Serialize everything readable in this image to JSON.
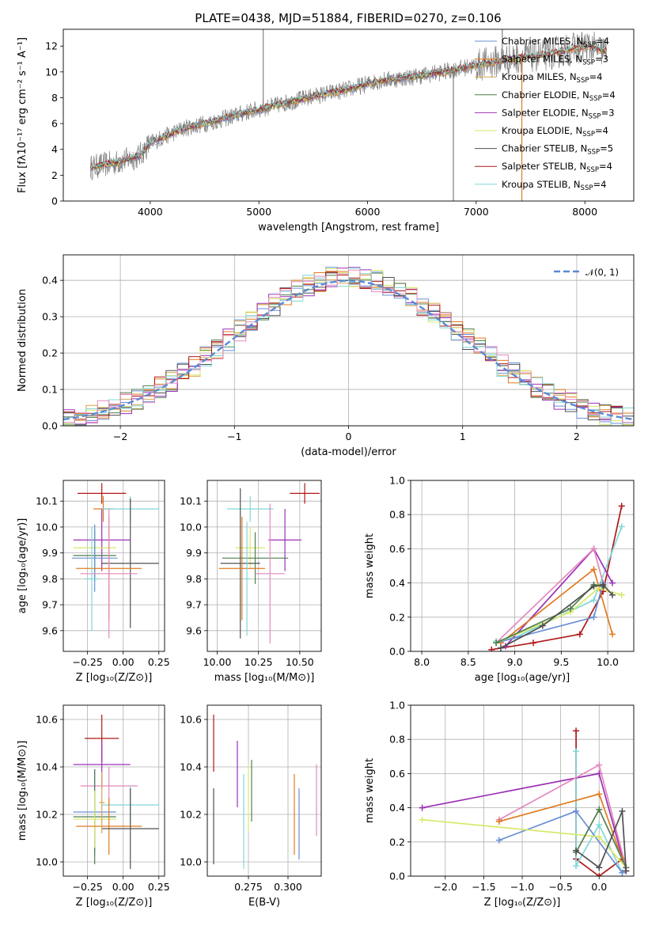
{
  "figure_title": "PLATE=0438, MJD=51884, FIBERID=0270, z=0.106",
  "colors": {
    "chabrier_miles": "#6a8fd6",
    "salpeter_miles": "#e07b1f",
    "kroupa_miles": "#d6a64d",
    "chabrier_elodie": "#4f7f4f",
    "salpeter_elodie": "#9b30b6",
    "kroupa_elodie": "#d8e86a",
    "chabrier_stelib": "#505050",
    "salpeter_stelib": "#b01818",
    "kroupa_stelib": "#80d8d8",
    "pink": "#e389bd",
    "norm_line": "#5b8ad6",
    "data_spectrum": "#808080"
  },
  "chart_data": [
    {
      "id": "spectrum",
      "type": "line",
      "title": "PLATE=0438, MJD=51884, FIBERID=0270, z=0.106",
      "xlabel": "wavelength [Angstrom, rest frame]",
      "ylabel": "Flux [fλ10⁻¹⁷ erg cm⁻² s⁻¹ A⁻¹]",
      "xlim": [
        3200,
        8450
      ],
      "ylim": [
        0,
        13.3
      ],
      "xticks": [
        4000,
        5000,
        6000,
        7000,
        8000
      ],
      "yticks": [
        0,
        2,
        4,
        6,
        8,
        10,
        12
      ],
      "grid": false,
      "legend_position": "top-right",
      "legend": [
        {
          "label": "Chabrier MILES, N",
          "sub": "SSP",
          "tail": "=4",
          "color": "chabrier_miles"
        },
        {
          "label": "Salpeter MILES, N",
          "sub": "SSP",
          "tail": "=3",
          "color": "salpeter_miles"
        },
        {
          "label": "Kroupa MILES, N",
          "sub": "SSP",
          "tail": "=4",
          "color": "kroupa_miles"
        },
        {
          "label": "Chabrier ELODIE, N",
          "sub": "SSP",
          "tail": "=4",
          "color": "chabrier_elodie"
        },
        {
          "label": "Salpeter ELODIE, N",
          "sub": "SSP",
          "tail": "=3",
          "color": "salpeter_elodie"
        },
        {
          "label": "Kroupa ELODIE, N",
          "sub": "SSP",
          "tail": "=4",
          "color": "kroupa_elodie"
        },
        {
          "label": "Chabrier STELIB, N",
          "sub": "SSP",
          "tail": "=5",
          "color": "chabrier_stelib"
        },
        {
          "label": "Salpeter STELIB, N",
          "sub": "SSP",
          "tail": "=4",
          "color": "salpeter_stelib"
        },
        {
          "label": "Kroupa STELIB, N",
          "sub": "SSP",
          "tail": "=4",
          "color": "kroupa_stelib"
        }
      ],
      "continuum": [
        [
          3450,
          2.6
        ],
        [
          3700,
          3.0
        ],
        [
          3900,
          3.5
        ],
        [
          4000,
          4.5
        ],
        [
          4300,
          5.6
        ],
        [
          4600,
          6.2
        ],
        [
          4900,
          6.9
        ],
        [
          5100,
          7.3
        ],
        [
          5500,
          8.1
        ],
        [
          5800,
          8.6
        ],
        [
          6100,
          9.3
        ],
        [
          6400,
          9.6
        ],
        [
          6700,
          10.0
        ],
        [
          7000,
          10.5
        ],
        [
          7300,
          11.0
        ],
        [
          7600,
          11.3
        ],
        [
          7800,
          11.6
        ],
        [
          8000,
          12.0
        ],
        [
          8200,
          11.6
        ]
      ],
      "spikes": [
        {
          "x": 5040,
          "y": 13.3
        },
        {
          "x": 6790,
          "y": 0
        },
        {
          "x": 7240,
          "y": 13.3
        },
        {
          "x": 7420,
          "y": 0
        }
      ]
    },
    {
      "id": "residual_hist",
      "type": "bar",
      "xlabel": "(data-model)/error",
      "ylabel": "Normed distribution",
      "xlim": [
        -2.5,
        2.5
      ],
      "ylim": [
        0,
        0.47
      ],
      "xticks": [
        -2,
        -1,
        0,
        1,
        2
      ],
      "yticks": [
        0.0,
        0.1,
        0.2,
        0.3,
        0.4
      ],
      "grid": true,
      "legend_position": "top-right",
      "legend_label": "𝒩(0, 1)",
      "bin_width": 0.1
    },
    {
      "id": "age_vs_Z",
      "type": "scatter",
      "xlabel": "Z [log₁₀(Z/Z⊙)]",
      "ylabel": "age  [log₁₀(age/yr)]",
      "xlim": [
        -0.42,
        0.29
      ],
      "ylim": [
        9.52,
        10.18
      ],
      "xticks": [
        -0.25,
        0.0,
        0.25
      ],
      "yticks": [
        9.6,
        9.7,
        9.8,
        9.9,
        10.0,
        10.1
      ],
      "grid": true,
      "errorbars": [
        {
          "x": -0.15,
          "y": 10.13,
          "xe": 0.17,
          "ye": 0.04,
          "color": "salpeter_stelib"
        },
        {
          "x": -0.14,
          "y": 10.07,
          "xe": 0.07,
          "ye": 0.05,
          "color": "salpeter_miles"
        },
        {
          "x": 0.05,
          "y": 10.07,
          "xe": 0.2,
          "ye": 0.05,
          "color": "kroupa_stelib"
        },
        {
          "x": -0.15,
          "y": 9.95,
          "xe": 0.2,
          "ye": 0.12,
          "color": "salpeter_elodie"
        },
        {
          "x": -0.2,
          "y": 9.92,
          "xe": 0.15,
          "ye": 0.08,
          "color": "kroupa_elodie"
        },
        {
          "x": -0.2,
          "y": 9.89,
          "xe": 0.15,
          "ye": 0.1,
          "color": "chabrier_elodie"
        },
        {
          "x": -0.2,
          "y": 9.88,
          "xe": 0.16,
          "ye": 0.13,
          "color": "chabrier_miles"
        },
        {
          "x": 0.05,
          "y": 9.86,
          "xe": 0.2,
          "ye": 0.25,
          "color": "chabrier_stelib"
        },
        {
          "x": -0.1,
          "y": 9.84,
          "xe": 0.23,
          "ye": 0.2,
          "color": "salpeter_miles"
        },
        {
          "x": -0.1,
          "y": 9.82,
          "xe": 0.2,
          "ye": 0.25,
          "color": "pink"
        },
        {
          "x": -0.22,
          "y": 9.8,
          "xe": 0.05,
          "ye": 0.2,
          "color": "kroupa_stelib"
        }
      ]
    },
    {
      "id": "age_vs_mass",
      "type": "scatter",
      "xlabel": "mass [log₁₀(M/M⊙)]",
      "ylabel": "",
      "xlim": [
        9.94,
        10.63
      ],
      "ylim": [
        9.52,
        10.18
      ],
      "xticks": [
        10.0,
        10.25,
        10.5
      ],
      "yticks": [
        9.6,
        9.7,
        9.8,
        9.9,
        10.0,
        10.1
      ],
      "grid": true,
      "errorbars": [
        {
          "x": 10.53,
          "y": 10.13,
          "xe": 0.09,
          "ye": 0.04,
          "color": "salpeter_stelib"
        },
        {
          "x": 10.2,
          "y": 10.07,
          "xe": 0.14,
          "ye": 0.05,
          "color": "kroupa_stelib"
        },
        {
          "x": 10.41,
          "y": 9.95,
          "xe": 0.1,
          "ye": 0.12,
          "color": "salpeter_elodie"
        },
        {
          "x": 10.2,
          "y": 9.92,
          "xe": 0.09,
          "ye": 0.08,
          "color": "kroupa_elodie"
        },
        {
          "x": 10.23,
          "y": 9.88,
          "xe": 0.2,
          "ye": 0.1,
          "color": "chabrier_elodie"
        },
        {
          "x": 10.14,
          "y": 9.86,
          "xe": 0.12,
          "ye": 0.29,
          "color": "chabrier_stelib"
        },
        {
          "x": 10.15,
          "y": 9.84,
          "xe": 0.14,
          "ye": 0.2,
          "color": "salpeter_miles"
        },
        {
          "x": 10.32,
          "y": 9.82,
          "xe": 0.09,
          "ye": 0.27,
          "color": "pink"
        },
        {
          "x": 10.18,
          "y": 9.8,
          "xe": 0.02,
          "ye": 0.22,
          "color": "kroupa_stelib"
        }
      ]
    },
    {
      "id": "weight_vs_age",
      "type": "line",
      "xlabel": "age  [log₁₀(age/yr)]",
      "ylabel": "mass weight",
      "xlim": [
        7.88,
        10.28
      ],
      "ylim": [
        0,
        1.0
      ],
      "xticks": [
        8.0,
        8.5,
        9.0,
        9.5,
        10.0
      ],
      "yticks": [
        0.0,
        0.2,
        0.4,
        0.6,
        0.8,
        1.0
      ],
      "grid": true,
      "series": [
        {
          "color": "salpeter_stelib",
          "x": [
            8.75,
            9.2,
            9.7,
            9.95,
            10.15
          ],
          "y": [
            0.01,
            0.05,
            0.1,
            0.35,
            0.85
          ]
        },
        {
          "color": "kroupa_stelib",
          "x": [
            8.8,
            9.0,
            9.85,
            10.15
          ],
          "y": [
            0.06,
            0.08,
            0.3,
            0.73
          ]
        },
        {
          "color": "salpeter_elodie",
          "x": [
            8.9,
            9.85,
            10.05
          ],
          "y": [
            0.03,
            0.6,
            0.4
          ]
        },
        {
          "color": "pink",
          "x": [
            8.8,
            9.85,
            9.95
          ],
          "y": [
            0.05,
            0.6,
            0.4
          ]
        },
        {
          "color": "salpeter_miles",
          "x": [
            8.85,
            9.85,
            10.05
          ],
          "y": [
            0.05,
            0.48,
            0.1
          ]
        },
        {
          "color": "chabrier_miles",
          "x": [
            8.8,
            9.85,
            9.95
          ],
          "y": [
            0.05,
            0.2,
            0.4
          ]
        },
        {
          "color": "kroupa_elodie",
          "x": [
            8.8,
            9.6,
            9.9,
            10.15
          ],
          "y": [
            0.05,
            0.23,
            0.37,
            0.33
          ]
        },
        {
          "color": "chabrier_elodie",
          "x": [
            8.8,
            9.6,
            9.85,
            9.95
          ],
          "y": [
            0.05,
            0.25,
            0.39,
            0.38
          ]
        },
        {
          "color": "chabrier_stelib",
          "x": [
            8.85,
            9.3,
            9.85,
            9.95,
            10.05
          ],
          "y": [
            0.02,
            0.15,
            0.38,
            0.39,
            0.33
          ]
        }
      ]
    },
    {
      "id": "mass_vs_Z",
      "type": "scatter",
      "xlabel": "Z [log₁₀(Z/Z⊙)]",
      "ylabel": "mass [log₁₀(M/M⊙)]",
      "xlim": [
        -0.42,
        0.29
      ],
      "ylim": [
        9.94,
        10.66
      ],
      "xticks": [
        -0.25,
        0.0,
        0.25
      ],
      "yticks": [
        10.0,
        10.2,
        10.4,
        10.6
      ],
      "grid": true,
      "errorbars": [
        {
          "x": -0.15,
          "y": 10.52,
          "xe": 0.12,
          "ye": 0.1,
          "color": "salpeter_stelib"
        },
        {
          "x": -0.15,
          "y": 10.41,
          "xe": 0.2,
          "ye": 0.1,
          "color": "salpeter_elodie"
        },
        {
          "x": -0.1,
          "y": 10.32,
          "xe": 0.2,
          "ye": 0.08,
          "color": "pink"
        },
        {
          "x": 0.05,
          "y": 10.24,
          "xe": 0.2,
          "ye": 0.08,
          "color": "kroupa_stelib"
        },
        {
          "x": -0.2,
          "y": 10.21,
          "xe": 0.15,
          "ye": 0.18,
          "color": "chabrier_miles"
        },
        {
          "x": -0.2,
          "y": 10.19,
          "xe": 0.15,
          "ye": 0.2,
          "color": "chabrier_elodie"
        },
        {
          "x": -0.2,
          "y": 10.18,
          "xe": 0.15,
          "ye": 0.12,
          "color": "kroupa_elodie"
        },
        {
          "x": -0.1,
          "y": 10.15,
          "xe": 0.23,
          "ye": 0.12,
          "color": "salpeter_miles"
        },
        {
          "x": 0.05,
          "y": 10.14,
          "xe": 0.2,
          "ye": 0.17,
          "color": "chabrier_stelib"
        },
        {
          "x": -0.15,
          "y": 10.25,
          "xe": 0.02,
          "ye": 0.13,
          "color": "kroupa_miles"
        }
      ]
    },
    {
      "id": "mass_vs_ebv",
      "type": "scatter",
      "xlabel": "E(B-V)",
      "ylabel": "",
      "xlim": [
        0.249,
        0.321
      ],
      "ylim": [
        9.94,
        10.66
      ],
      "xticks": [
        0.275,
        0.3
      ],
      "yticks": [
        10.0,
        10.2,
        10.4,
        10.6
      ],
      "grid": true,
      "errorbars": [
        {
          "x": 0.253,
          "y": 10.5,
          "xe": 0,
          "ye": 0.12,
          "color": "salpeter_stelib"
        },
        {
          "x": 0.253,
          "y": 10.15,
          "xe": 0,
          "ye": 0.16,
          "color": "chabrier_stelib"
        },
        {
          "x": 0.268,
          "y": 10.37,
          "xe": 0,
          "ye": 0.14,
          "color": "salpeter_elodie"
        },
        {
          "x": 0.272,
          "y": 10.17,
          "xe": 0,
          "ye": 0.2,
          "color": "kroupa_stelib"
        },
        {
          "x": 0.275,
          "y": 10.27,
          "xe": 0,
          "ye": 0.14,
          "color": "kroupa_elodie"
        },
        {
          "x": 0.277,
          "y": 10.3,
          "xe": 0,
          "ye": 0.13,
          "color": "chabrier_elodie"
        },
        {
          "x": 0.304,
          "y": 10.2,
          "xe": 0,
          "ye": 0.17,
          "color": "salpeter_miles"
        },
        {
          "x": 0.307,
          "y": 10.16,
          "xe": 0,
          "ye": 0.15,
          "color": "chabrier_miles"
        },
        {
          "x": 0.318,
          "y": 10.26,
          "xe": 0,
          "ye": 0.15,
          "color": "pink"
        }
      ]
    },
    {
      "id": "weight_vs_Z",
      "type": "line",
      "xlabel": "Z [log₁₀(Z/Z⊙)]",
      "ylabel": "mass weight",
      "xlim": [
        -2.45,
        0.45
      ],
      "ylim": [
        0,
        1.0
      ],
      "xticks": [
        -2.0,
        -1.5,
        -1.0,
        -0.5,
        0.0
      ],
      "yticks": [
        0.0,
        0.2,
        0.4,
        0.6,
        0.8,
        1.0
      ],
      "grid": true,
      "series": [
        {
          "color": "salpeter_stelib",
          "x": [
            -0.3,
            -0.3,
            0.0,
            0.3,
            0.35
          ],
          "y": [
            0.85,
            0.1,
            0.0,
            0.1,
            0.05
          ]
        },
        {
          "color": "kroupa_stelib",
          "x": [
            -0.3,
            -0.3,
            0.0,
            0.3
          ],
          "y": [
            0.73,
            0.06,
            0.3,
            0.02
          ]
        },
        {
          "color": "salpeter_elodie",
          "x": [
            -2.3,
            0.0,
            0.35
          ],
          "y": [
            0.4,
            0.6,
            0.03
          ]
        },
        {
          "color": "pink",
          "x": [
            -1.3,
            0.0,
            0.35
          ],
          "y": [
            0.33,
            0.65,
            0.05
          ]
        },
        {
          "color": "salpeter_miles",
          "x": [
            -1.3,
            0.0,
            0.3
          ],
          "y": [
            0.32,
            0.48,
            0.1
          ]
        },
        {
          "color": "chabrier_miles",
          "x": [
            -1.3,
            -0.3,
            0.3
          ],
          "y": [
            0.21,
            0.38,
            0.02
          ]
        },
        {
          "color": "kroupa_elodie",
          "x": [
            -2.3,
            0.0,
            0.35
          ],
          "y": [
            0.33,
            0.23,
            0.05
          ]
        },
        {
          "color": "chabrier_elodie",
          "x": [
            -0.3,
            0.0,
            0.35
          ],
          "y": [
            0.14,
            0.39,
            0.05
          ]
        },
        {
          "color": "chabrier_stelib",
          "x": [
            -0.3,
            0.0,
            0.3,
            0.35
          ],
          "y": [
            0.15,
            0.05,
            0.38,
            0.03
          ]
        }
      ]
    }
  ]
}
